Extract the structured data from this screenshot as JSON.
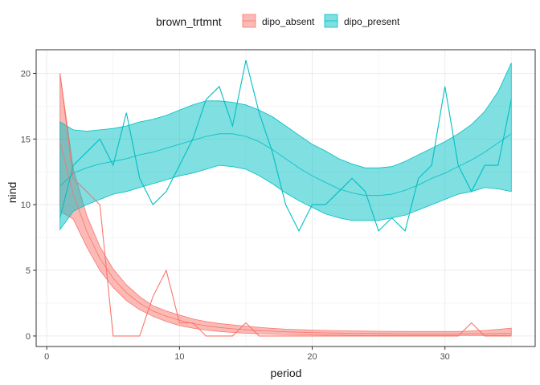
{
  "chart_data": {
    "type": "line",
    "xlabel": "period",
    "ylabel": "nind",
    "xlim": [
      -0.8,
      36.8
    ],
    "ylim": [
      -0.8,
      21.8
    ],
    "xticks": [
      0,
      10,
      20,
      30
    ],
    "yticks": [
      0,
      5,
      10,
      15,
      20
    ],
    "grid": true,
    "legend": {
      "title": "brown_trtmnt",
      "position": "top",
      "entries": [
        "dipo_absent",
        "dipo_present"
      ]
    },
    "series": [
      {
        "name": "dipo_absent",
        "color": "#F8766D",
        "x": [
          1,
          2,
          3,
          4,
          5,
          6,
          7,
          8,
          9,
          10,
          11,
          12,
          13,
          14,
          15,
          16,
          17,
          18,
          19,
          20,
          21,
          22,
          23,
          24,
          25,
          26,
          27,
          28,
          29,
          30,
          31,
          32,
          33,
          34,
          35
        ],
        "y": [
          20,
          12,
          11,
          10,
          0,
          0,
          0,
          3,
          5,
          1,
          1,
          0,
          0,
          0,
          1,
          0,
          0,
          0,
          0,
          0,
          0,
          0,
          0,
          0,
          0,
          0,
          0,
          0,
          0,
          0,
          0,
          1,
          0,
          0,
          0
        ],
        "fit": [
          14.8,
          10.8,
          8.0,
          5.9,
          4.4,
          3.3,
          2.5,
          1.9,
          1.5,
          1.2,
          0.95,
          0.78,
          0.65,
          0.55,
          0.47,
          0.41,
          0.36,
          0.32,
          0.29,
          0.26,
          0.24,
          0.22,
          0.21,
          0.2,
          0.19,
          0.18,
          0.17,
          0.17,
          0.17,
          0.17,
          0.17,
          0.18,
          0.18,
          0.19,
          0.2
        ],
        "lower": [
          9.5,
          8.9,
          6.8,
          5.0,
          3.7,
          2.7,
          2.0,
          1.5,
          1.1,
          0.8,
          0.6,
          0.45,
          0.35,
          0.27,
          0.21,
          0.17,
          0.14,
          0.11,
          0.09,
          0.08,
          0.07,
          0.06,
          0.05,
          0.05,
          0.04,
          0.04,
          0.04,
          0.04,
          0.04,
          0.04,
          0.04,
          0.04,
          0.04,
          0.04,
          0.04
        ],
        "upper": [
          20.0,
          12.7,
          9.2,
          6.8,
          5.1,
          3.9,
          3.0,
          2.3,
          1.9,
          1.6,
          1.3,
          1.1,
          0.95,
          0.85,
          0.75,
          0.66,
          0.58,
          0.52,
          0.48,
          0.45,
          0.42,
          0.4,
          0.38,
          0.37,
          0.36,
          0.35,
          0.34,
          0.34,
          0.34,
          0.34,
          0.34,
          0.38,
          0.42,
          0.5,
          0.6
        ]
      },
      {
        "name": "dipo_present",
        "color": "#00BFC4",
        "x": [
          1,
          2,
          3,
          4,
          5,
          6,
          7,
          8,
          9,
          10,
          11,
          12,
          13,
          14,
          15,
          16,
          17,
          18,
          19,
          20,
          21,
          22,
          23,
          24,
          25,
          26,
          27,
          28,
          29,
          30,
          31,
          32,
          33,
          34,
          35
        ],
        "y": [
          9,
          13,
          14,
          15,
          13,
          17,
          12,
          10,
          11,
          13,
          15,
          18,
          19,
          16,
          21,
          17,
          14,
          10,
          8,
          10,
          10,
          11,
          12,
          11,
          8,
          9,
          8,
          12,
          13,
          19,
          13,
          11,
          13,
          13,
          18
        ],
        "fit": [
          11.4,
          12.4,
          12.8,
          13.1,
          13.3,
          13.5,
          13.8,
          14.0,
          14.3,
          14.6,
          14.9,
          15.2,
          15.4,
          15.4,
          15.2,
          14.8,
          14.2,
          13.5,
          12.8,
          12.2,
          11.7,
          11.2,
          10.9,
          10.7,
          10.7,
          10.8,
          11.1,
          11.5,
          12.0,
          12.4,
          12.9,
          13.4,
          14.0,
          14.7,
          15.4
        ],
        "lower": [
          8.1,
          9.5,
          10.0,
          10.4,
          10.8,
          11.0,
          11.3,
          11.6,
          11.9,
          12.2,
          12.4,
          12.7,
          13.0,
          12.9,
          12.7,
          12.2,
          11.6,
          10.9,
          10.3,
          9.8,
          9.3,
          9.0,
          8.8,
          8.8,
          8.8,
          9.0,
          9.2,
          9.6,
          10.0,
          10.4,
          10.8,
          11.0,
          11.3,
          11.2,
          11.0
        ],
        "upper": [
          16.3,
          15.7,
          15.6,
          15.7,
          15.8,
          16.0,
          16.3,
          16.5,
          16.8,
          17.2,
          17.6,
          17.9,
          17.9,
          17.8,
          17.6,
          17.2,
          16.7,
          16.0,
          15.3,
          14.6,
          14.1,
          13.5,
          13.1,
          12.8,
          12.8,
          12.9,
          13.3,
          13.8,
          14.3,
          14.8,
          15.4,
          16.1,
          17.1,
          18.6,
          20.8
        ]
      }
    ]
  }
}
